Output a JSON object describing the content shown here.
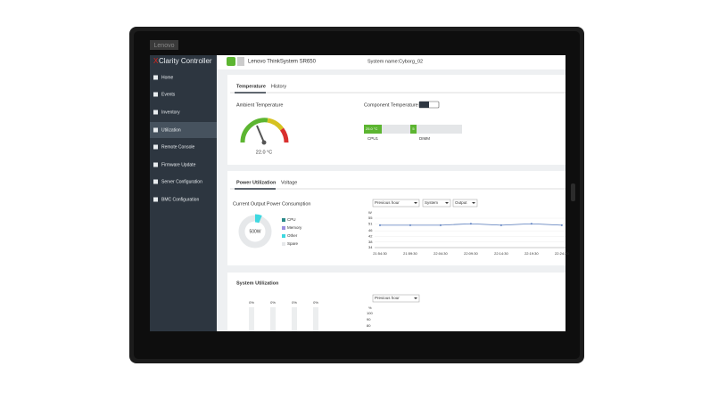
{
  "device_logo": "Lenovo",
  "sidebar": {
    "brand_x": "X",
    "brand_rest": "Clarity Controller",
    "items": [
      "Home",
      "Events",
      "Inventory",
      "Utilization",
      "Remote Console",
      "Firmware Update",
      "Server Configuration",
      "BMC Configuration"
    ]
  },
  "header": {
    "product": "Lenovo ThinkSystem SR650",
    "system_name": "System name:Cyborg_02"
  },
  "temperature_card": {
    "tabs": [
      "Temperature",
      "History"
    ],
    "ambient_label": "Ambient Temperature",
    "ambient_value": "22.0 °C",
    "component_label": "Component Temperature",
    "cpu_value": "25.0 °C",
    "dimm_value": "5",
    "cpu_label": "CPU1",
    "dimm_label": "DIMM"
  },
  "power_card": {
    "tabs": [
      "Power Utilization",
      "Voltage"
    ],
    "consumption_label": "Current Output Power Consumption",
    "donut_value": "500W",
    "legend": [
      "CPU",
      "Memory",
      "Other",
      "Spare"
    ],
    "dropdowns": [
      "Previous hour",
      "System",
      "Output"
    ],
    "chart": {
      "type": "line",
      "y_unit": "W",
      "yticks": [
        55,
        51,
        46,
        42,
        38,
        34
      ],
      "ylim": [
        34,
        55
      ],
      "x": [
        "21:54:30",
        "21:59:30",
        "22:04:30",
        "22:09:30",
        "22:14:30",
        "22:19:30",
        "22:24:30"
      ],
      "values": [
        50,
        50,
        50,
        51,
        50,
        51,
        50
      ],
      "color": "#5b7fc0"
    }
  },
  "utilization_card": {
    "title": "System Utilization",
    "bar_labels": [
      "0%",
      "0%",
      "0%",
      "0%"
    ],
    "dropdown": "Previous hour",
    "y_unit": "%",
    "yticks": [
      100,
      90,
      80
    ]
  }
}
